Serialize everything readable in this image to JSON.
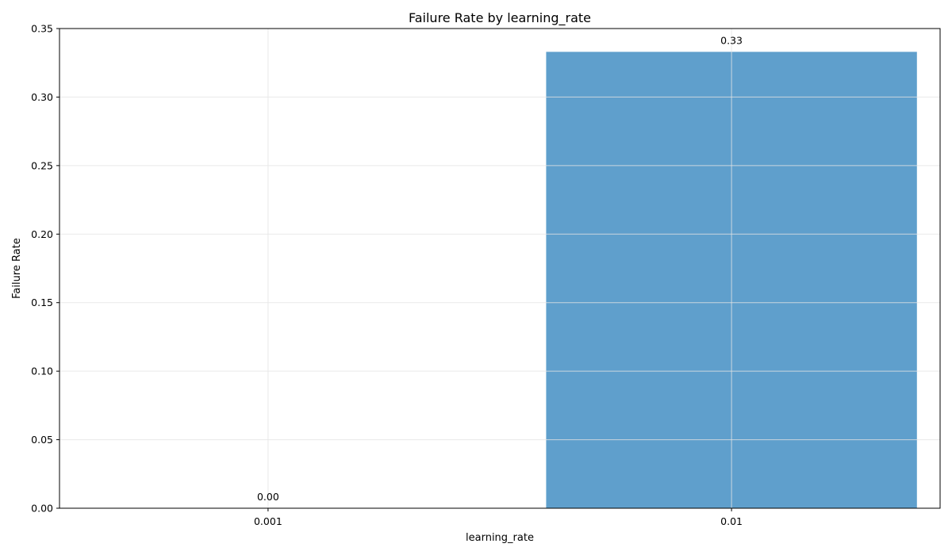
{
  "chart_data": {
    "type": "bar",
    "title": "Failure Rate by learning_rate",
    "xlabel": "learning_rate",
    "ylabel": "Failure Rate",
    "categories": [
      "0.001",
      "0.01"
    ],
    "values": [
      0.0,
      0.333
    ],
    "data_labels": [
      "0.00",
      "0.33"
    ],
    "ylim": [
      0,
      0.35
    ],
    "yticks": [
      0.0,
      0.05,
      0.1,
      0.15,
      0.2,
      0.25,
      0.3,
      0.35
    ],
    "ytick_labels": [
      "0.00",
      "0.05",
      "0.10",
      "0.15",
      "0.20",
      "0.25",
      "0.30",
      "0.35"
    ],
    "grid": true,
    "bar_color": "#5f9fcc",
    "grid_color": "#e3e3e3"
  }
}
